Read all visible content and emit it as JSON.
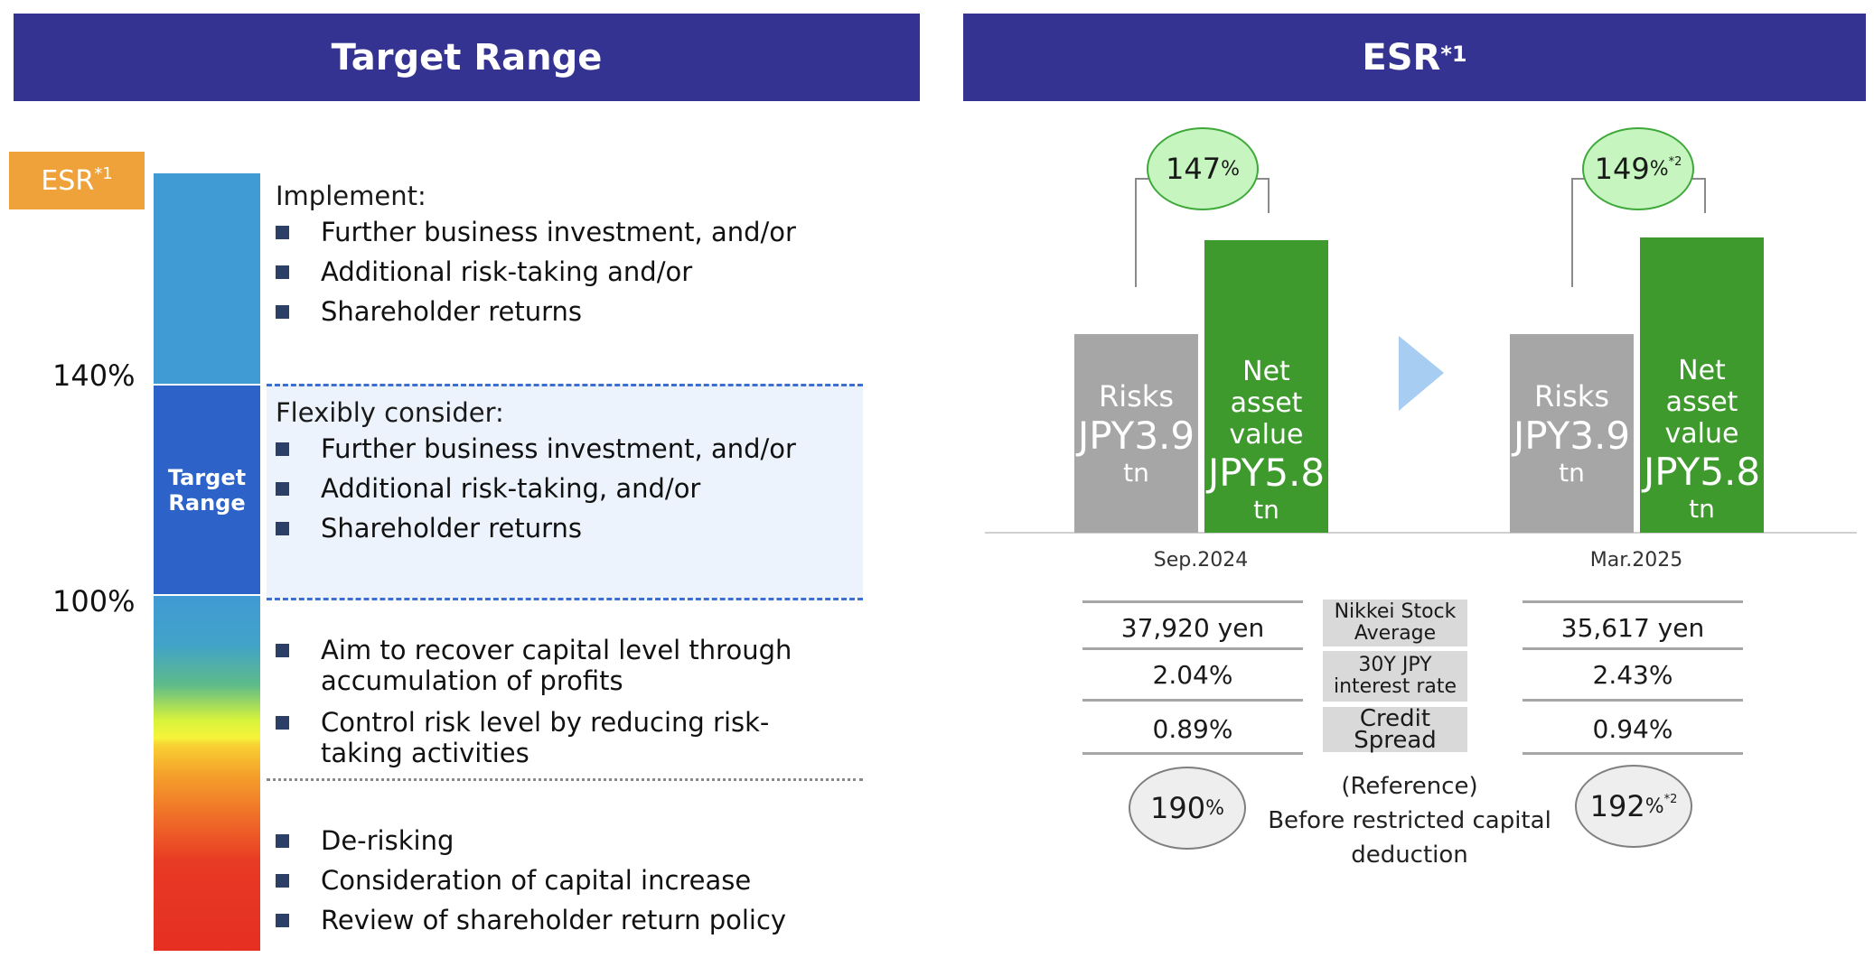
{
  "left_header": {
    "title": "Target Range"
  },
  "right_header": {
    "title": "ESR",
    "note": "*1"
  },
  "esr_tag": {
    "label": "ESR",
    "note": "*1"
  },
  "scale": {
    "top_pct": "140%",
    "bottom_pct": "100%",
    "target_label": "Target Range"
  },
  "block1": {
    "title": "Implement:",
    "items": [
      "Further business investment, and/or",
      "Additional risk-taking and/or",
      "Shareholder returns"
    ]
  },
  "block2": {
    "title": "Flexibly consider:",
    "items": [
      "Further business investment, and/or",
      "Additional risk-taking, and/or",
      "Shareholder returns"
    ]
  },
  "block3": {
    "items": [
      "Aim to recover capital level through accumulation of profits",
      "Control risk level by reducing risk-taking activities"
    ]
  },
  "block4": {
    "items": [
      "De-risking",
      "Consideration of capital increase",
      "Review of shareholder return policy"
    ]
  },
  "periods": [
    {
      "label": "Sep.2024",
      "esr_value": "147",
      "esr_unit": "%",
      "esr_note": "",
      "risks_label": "Risks",
      "risks_value": "JPY3.9",
      "risks_unit": "tn",
      "nav_label_1": "Net asset",
      "nav_label_2": "value",
      "nav_value": "JPY5.8",
      "nav_unit": "tn",
      "nikkei": "37,920 yen",
      "rate": "2.04%",
      "spread": "0.89%",
      "ref_value": "190",
      "ref_unit": "%",
      "ref_note": ""
    },
    {
      "label": "Mar.2025",
      "esr_value": "149",
      "esr_unit": "%",
      "esr_note": "*2",
      "risks_label": "Risks",
      "risks_value": "JPY3.9",
      "risks_unit": "tn",
      "nav_label_1": "Net asset",
      "nav_label_2": "value",
      "nav_value": "JPY5.8",
      "nav_unit": "tn",
      "nikkei": "35,617 yen",
      "rate": "2.43%",
      "spread": "0.94%",
      "ref_value": "192",
      "ref_unit": "%",
      "ref_note": "*2"
    }
  ],
  "table_labels": {
    "nikkei_1": "Nikkei Stock",
    "nikkei_2": "Average",
    "rate_1": "30Y JPY",
    "rate_2": "interest rate",
    "spread": "Credit Spread"
  },
  "reference": {
    "line1": "(Reference)",
    "line2": "Before restricted capital",
    "line3": "deduction"
  },
  "colors": {
    "header": "#353392",
    "risk_bar": "#a6a6a6",
    "nav_bar": "#3e9a2d",
    "target_band": "#2d62c8",
    "esr_bubble": "#c6f5bf",
    "ref_bubble": "#eeeeee"
  }
}
